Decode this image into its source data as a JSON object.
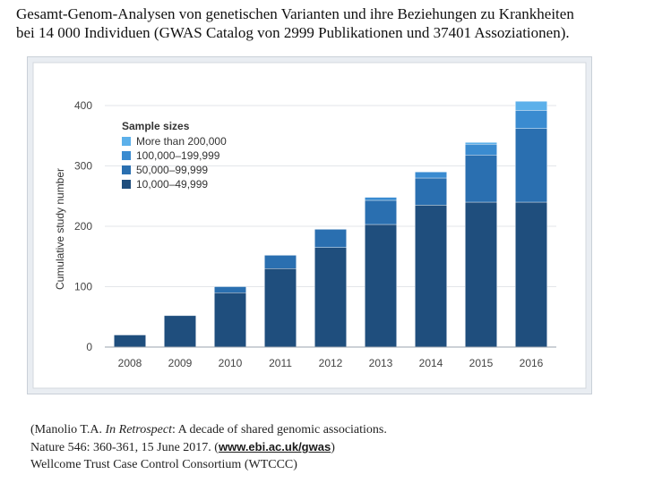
{
  "slide": {
    "title_line1": "Gesamt-Genom-Analysen von genetischen Varianten und ihre Beziehungen zu Krankheiten",
    "title_line2": "bei 14 000 Individuen (GWAS Catalog von 2999 Publikationen und 37401 Assoziationen)."
  },
  "caption": {
    "line1_prefix": "(Manolio T.A. ",
    "line1_italic": "In Retrospect",
    "line1_suffix": ": A decade of shared genomic associations.",
    "line2_prefix": "Nature 546: 360-361, 15 June 2017. (",
    "line2_link": "www.ebi.ac.uk/gwas",
    "line2_suffix": ")",
    "line3": "Wellcome Trust Case Control Consortium (WTCCC)"
  },
  "chart_data": {
    "type": "bar",
    "stacked": true,
    "title": "",
    "xlabel": "",
    "ylabel": "Cumulative study number",
    "ylim": [
      0,
      400
    ],
    "yticks": [
      0,
      100,
      200,
      300,
      400
    ],
    "grid": true,
    "legend_title": "Sample sizes",
    "legend_position": "top-left",
    "categories": [
      "2008",
      "2009",
      "2010",
      "2011",
      "2012",
      "2013",
      "2014",
      "2015",
      "2016"
    ],
    "series": [
      {
        "name": "10,000–49,999",
        "color": "#1f4e7d",
        "values": [
          20,
          52,
          90,
          130,
          165,
          203,
          235,
          240,
          240
        ]
      },
      {
        "name": "50,000–99,999",
        "color": "#2a6fb0",
        "values": [
          0,
          0,
          10,
          22,
          30,
          40,
          45,
          78,
          122
        ]
      },
      {
        "name": "100,000–199,999",
        "color": "#3a8bd0",
        "values": [
          0,
          0,
          0,
          0,
          0,
          5,
          10,
          18,
          30
        ]
      },
      {
        "name": "More than 200,000",
        "color": "#5cb0ea",
        "values": [
          0,
          0,
          0,
          0,
          0,
          0,
          0,
          3,
          15
        ]
      }
    ]
  }
}
